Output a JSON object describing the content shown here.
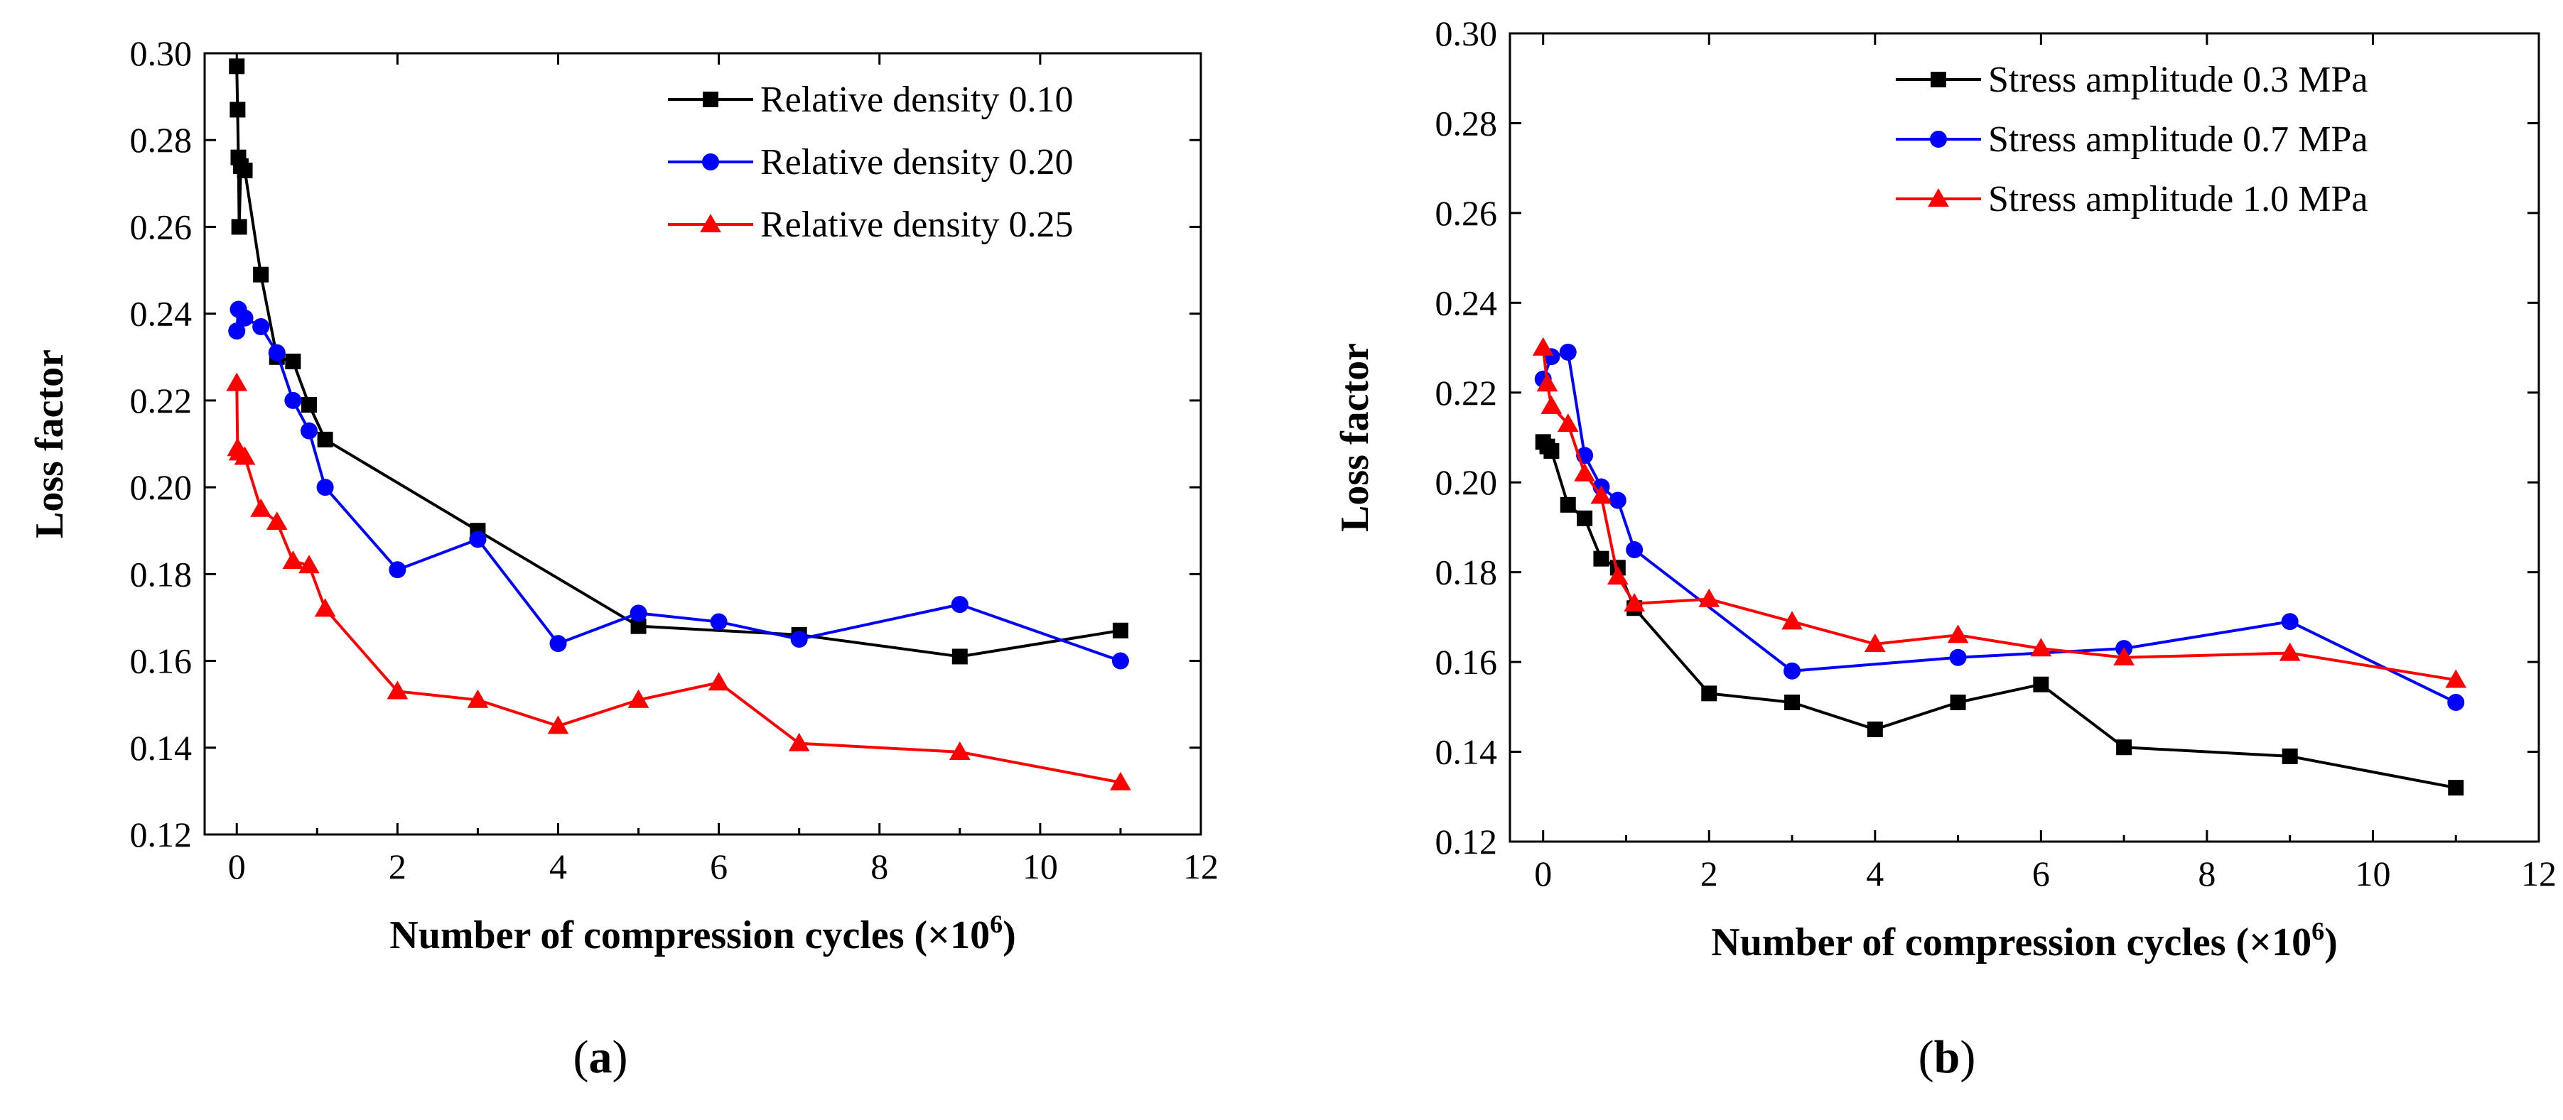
{
  "chart_data": [
    {
      "type": "line",
      "panel_label": "a",
      "xlabel": "Number of compression cycles (×10",
      "xlabel_superscript": "6",
      "xlabel_suffix": ")",
      "ylabel": "Loss factor",
      "xlim": [
        -0.4,
        12
      ],
      "ylim": [
        0.12,
        0.3
      ],
      "xticks": [
        0,
        2,
        4,
        6,
        8,
        10,
        12
      ],
      "yticks": [
        0.12,
        0.14,
        0.16,
        0.18,
        0.2,
        0.22,
        0.24,
        0.26,
        0.28,
        0.3
      ],
      "xtick_labels": [
        "0",
        "2",
        "4",
        "6",
        "8",
        "10",
        "12"
      ],
      "ytick_labels": [
        "0.12",
        "0.14",
        "0.16",
        "0.18",
        "0.20",
        "0.22",
        "0.24",
        "0.26",
        "0.28",
        "0.30"
      ],
      "legend_position": "top-right",
      "series": [
        {
          "name": "Relative density 0.10",
          "color": "#000000",
          "marker": "square",
          "x": [
            0.0,
            0.01,
            0.02,
            0.03,
            0.05,
            0.1,
            0.3,
            0.5,
            0.7,
            0.9,
            1.1,
            3.0,
            5.0,
            7.0,
            9.0,
            11.0
          ],
          "y": [
            0.297,
            0.287,
            0.276,
            0.26,
            0.274,
            0.273,
            0.249,
            0.23,
            0.229,
            0.219,
            0.211,
            0.19,
            0.168,
            0.166,
            0.161,
            0.167
          ]
        },
        {
          "name": "Relative density 0.20",
          "color": "#0000ff",
          "marker": "circle",
          "x": [
            0.0,
            0.02,
            0.1,
            0.3,
            0.5,
            0.7,
            0.9,
            1.1,
            2.0,
            3.0,
            4.0,
            5.0,
            6.0,
            7.0,
            9.0,
            11.0
          ],
          "y": [
            0.236,
            0.241,
            0.239,
            0.237,
            0.231,
            0.22,
            0.213,
            0.2,
            0.181,
            0.188,
            0.164,
            0.171,
            0.169,
            0.165,
            0.173,
            0.16
          ]
        },
        {
          "name": "Relative density 0.25",
          "color": "#ff0000",
          "marker": "triangle",
          "x": [
            0.0,
            0.01,
            0.03,
            0.1,
            0.3,
            0.5,
            0.7,
            0.9,
            1.1,
            2.0,
            3.0,
            4.0,
            5.0,
            6.0,
            7.0,
            9.0,
            11.0
          ],
          "y": [
            0.224,
            0.209,
            0.208,
            0.207,
            0.195,
            0.192,
            0.183,
            0.182,
            0.172,
            0.153,
            0.151,
            0.145,
            0.151,
            0.155,
            0.141,
            0.139,
            0.132
          ]
        }
      ]
    },
    {
      "type": "line",
      "panel_label": "b",
      "xlabel": "Number of compression cycles (×10",
      "xlabel_superscript": "6",
      "xlabel_suffix": ")",
      "ylabel": "Loss factor",
      "xlim": [
        -0.4,
        12
      ],
      "ylim": [
        0.12,
        0.3
      ],
      "xticks": [
        0,
        2,
        4,
        6,
        8,
        10,
        12
      ],
      "yticks": [
        0.12,
        0.14,
        0.16,
        0.18,
        0.2,
        0.22,
        0.24,
        0.26,
        0.28,
        0.3
      ],
      "xtick_labels": [
        "0",
        "2",
        "4",
        "6",
        "8",
        "10",
        "12"
      ],
      "ytick_labels": [
        "0.12",
        "0.14",
        "0.16",
        "0.18",
        "0.20",
        "0.22",
        "0.24",
        "0.26",
        "0.28",
        "0.30"
      ],
      "legend_position": "top-right",
      "series": [
        {
          "name": "Stress amplitude 0.3 MPa",
          "color": "#000000",
          "marker": "square",
          "x": [
            0.0,
            0.05,
            0.1,
            0.3,
            0.5,
            0.7,
            0.9,
            1.1,
            2.0,
            3.0,
            4.0,
            5.0,
            6.0,
            7.0,
            9.0,
            11.0
          ],
          "y": [
            0.209,
            0.208,
            0.207,
            0.195,
            0.192,
            0.183,
            0.181,
            0.172,
            0.153,
            0.151,
            0.145,
            0.151,
            0.155,
            0.141,
            0.139,
            0.132
          ]
        },
        {
          "name": "Stress amplitude 0.7 MPa",
          "color": "#0000ff",
          "marker": "circle",
          "x": [
            0.0,
            0.1,
            0.3,
            0.5,
            0.7,
            0.9,
            1.1,
            3.0,
            5.0,
            7.0,
            9.0,
            11.0
          ],
          "y": [
            0.223,
            0.228,
            0.229,
            0.206,
            0.199,
            0.196,
            0.185,
            0.158,
            0.161,
            0.163,
            0.169,
            0.151
          ]
        },
        {
          "name": "Stress amplitude 1.0 MPa",
          "color": "#ff0000",
          "marker": "triangle",
          "x": [
            0.0,
            0.05,
            0.1,
            0.3,
            0.5,
            0.7,
            0.9,
            1.1,
            2.0,
            3.0,
            4.0,
            5.0,
            6.0,
            7.0,
            9.0,
            11.0
          ],
          "y": [
            0.23,
            0.222,
            0.217,
            0.213,
            0.202,
            0.197,
            0.179,
            0.173,
            0.174,
            0.169,
            0.164,
            0.166,
            0.163,
            0.161,
            0.162,
            0.156
          ]
        }
      ]
    }
  ]
}
